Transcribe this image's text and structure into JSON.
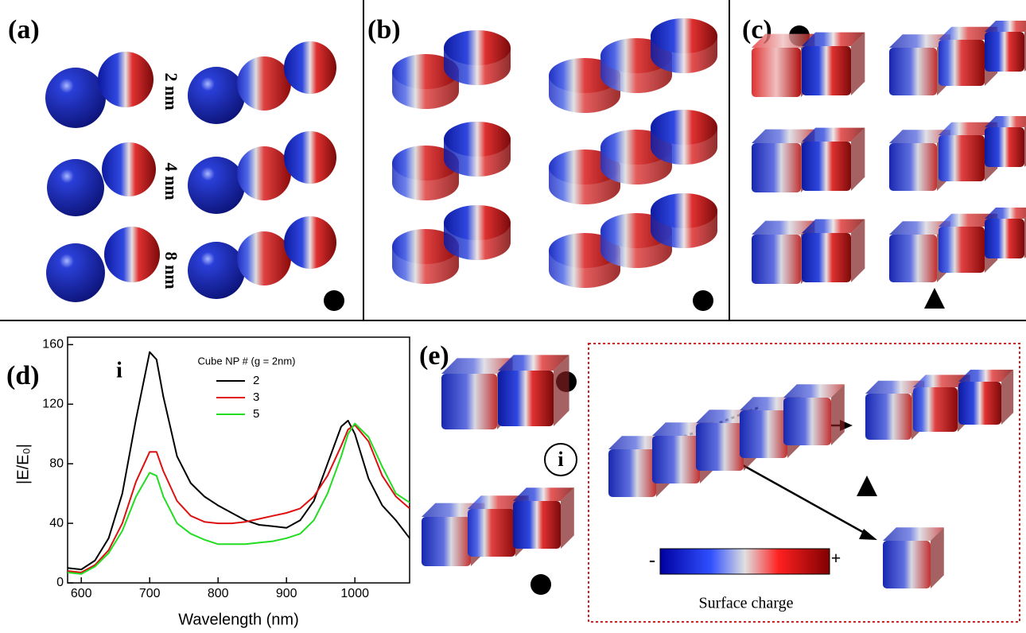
{
  "panels": {
    "a": "(a)",
    "b": "(b)",
    "c": "(c)",
    "d": "(d)",
    "e": "(e)"
  },
  "gaps": [
    "2 nm",
    "4 nm",
    "8 nm"
  ],
  "inset_marker": "i",
  "colorbar": {
    "minus": "-",
    "plus": "+",
    "label": "Surface charge"
  },
  "chart_data": {
    "type": "line",
    "annotation": "i",
    "legend_title": "Cube NP # (g = 2nm)",
    "xlabel": "Wavelength (nm)",
    "ylabel": "|E/E₀|",
    "x": [
      580,
      600,
      620,
      640,
      660,
      680,
      700,
      710,
      720,
      740,
      760,
      780,
      800,
      820,
      840,
      860,
      880,
      900,
      920,
      940,
      960,
      980,
      990,
      1000,
      1020,
      1040,
      1060,
      1080
    ],
    "series": [
      {
        "name": "2",
        "color": "#000000",
        "values": [
          10,
          9,
          15,
          30,
          60,
          110,
          155,
          150,
          125,
          85,
          67,
          58,
          52,
          47,
          42,
          39,
          38,
          37,
          42,
          55,
          80,
          105,
          109,
          100,
          70,
          52,
          42,
          30
        ]
      },
      {
        "name": "3",
        "color": "#dd1111",
        "values": [
          8,
          7,
          12,
          22,
          40,
          68,
          88,
          88,
          75,
          55,
          45,
          41,
          40,
          40,
          41,
          43,
          45,
          47,
          50,
          58,
          72,
          92,
          103,
          106,
          95,
          72,
          58,
          50
        ]
      },
      {
        "name": "5",
        "color": "#22dd22",
        "values": [
          7,
          6,
          11,
          20,
          35,
          58,
          74,
          72,
          58,
          40,
          33,
          29,
          26,
          26,
          26,
          27,
          28,
          30,
          33,
          42,
          60,
          85,
          100,
          107,
          98,
          78,
          60,
          54
        ]
      }
    ],
    "xlim": [
      580,
      1080
    ],
    "xticks": [
      600,
      700,
      800,
      900,
      1000
    ],
    "ylim": [
      0,
      165
    ],
    "yticks": [
      0,
      40,
      80,
      120,
      160
    ]
  }
}
